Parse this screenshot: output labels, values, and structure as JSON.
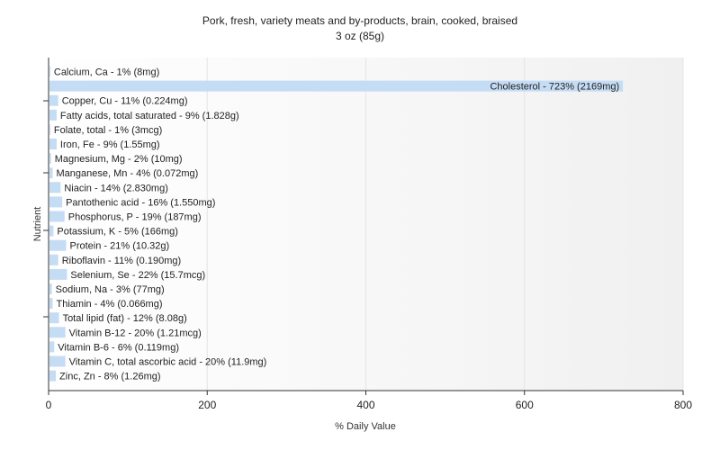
{
  "chart_data": {
    "type": "bar",
    "orientation": "horizontal",
    "title": "Pork, fresh, variety meats and by-products, brain, cooked, braised",
    "subtitle": "3 oz (85g)",
    "xlabel": "% Daily Value",
    "ylabel": "Nutrient",
    "xlim": [
      0,
      800
    ],
    "xticks": [
      0,
      200,
      400,
      600,
      800
    ],
    "grid": true,
    "legend": "none",
    "bar_color": "#c5dcf5",
    "categories": [
      "Calcium, Ca",
      "Cholesterol",
      "Copper, Cu",
      "Fatty acids, total saturated",
      "Folate, total",
      "Iron, Fe",
      "Magnesium, Mg",
      "Manganese, Mn",
      "Niacin",
      "Pantothenic acid",
      "Phosphorus, P",
      "Potassium, K",
      "Protein",
      "Riboflavin",
      "Selenium, Se",
      "Sodium, Na",
      "Thiamin",
      "Total lipid (fat)",
      "Vitamin B-12",
      "Vitamin B-6",
      "Vitamin C, total ascorbic acid",
      "Zinc, Zn"
    ],
    "values": [
      1,
      723,
      11,
      9,
      1,
      9,
      2,
      4,
      14,
      16,
      19,
      5,
      21,
      11,
      22,
      3,
      4,
      12,
      20,
      6,
      20,
      8
    ],
    "labels": [
      "Calcium, Ca - 1% (8mg)",
      "Cholesterol - 723% (2169mg)",
      "Copper, Cu - 11% (0.224mg)",
      "Fatty acids, total saturated - 9% (1.828g)",
      "Folate, total - 1% (3mcg)",
      "Iron, Fe - 9% (1.55mg)",
      "Magnesium, Mg - 2% (10mg)",
      "Manganese, Mn - 4% (0.072mg)",
      "Niacin - 14% (2.830mg)",
      "Pantothenic acid - 16% (1.550mg)",
      "Phosphorus, P - 19% (187mg)",
      "Potassium, K - 5% (166mg)",
      "Protein - 21% (10.32g)",
      "Riboflavin - 11% (0.190mg)",
      "Selenium, Se - 22% (15.7mcg)",
      "Sodium, Na - 3% (77mg)",
      "Thiamin - 4% (0.066mg)",
      "Total lipid (fat) - 12% (8.08g)",
      "Vitamin B-12 - 20% (1.21mcg)",
      "Vitamin B-6 - 6% (0.119mg)",
      "Vitamin C, total ascorbic acid - 20% (11.9mg)",
      "Zinc, Zn - 8% (1.26mg)"
    ]
  }
}
